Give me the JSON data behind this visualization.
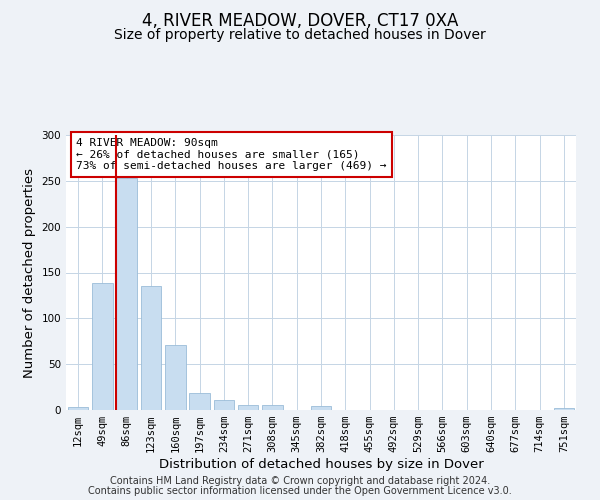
{
  "title": "4, RIVER MEADOW, DOVER, CT17 0XA",
  "subtitle": "Size of property relative to detached houses in Dover",
  "xlabel": "Distribution of detached houses by size in Dover",
  "ylabel": "Number of detached properties",
  "bin_labels": [
    "12sqm",
    "49sqm",
    "86sqm",
    "123sqm",
    "160sqm",
    "197sqm",
    "234sqm",
    "271sqm",
    "308sqm",
    "345sqm",
    "382sqm",
    "418sqm",
    "455sqm",
    "492sqm",
    "529sqm",
    "566sqm",
    "603sqm",
    "640sqm",
    "677sqm",
    "714sqm",
    "751sqm"
  ],
  "bar_values": [
    3,
    139,
    253,
    135,
    71,
    19,
    11,
    5,
    5,
    0,
    4,
    0,
    0,
    0,
    0,
    0,
    0,
    0,
    0,
    0,
    2
  ],
  "bar_color": "#c8ddf0",
  "bar_edge_color": "#9bbdd8",
  "property_line_color": "#cc0000",
  "annotation_title": "4 RIVER MEADOW: 90sqm",
  "annotation_line1": "← 26% of detached houses are smaller (165)",
  "annotation_line2": "73% of semi-detached houses are larger (469) →",
  "annotation_box_color": "#cc0000",
  "ylim": [
    0,
    300
  ],
  "yticks": [
    0,
    50,
    100,
    150,
    200,
    250,
    300
  ],
  "footnote1": "Contains HM Land Registry data © Crown copyright and database right 2024.",
  "footnote2": "Contains public sector information licensed under the Open Government Licence v3.0.",
  "background_color": "#eef2f7",
  "plot_bg_color": "#ffffff",
  "grid_color": "#c5d5e5",
  "title_fontsize": 12,
  "subtitle_fontsize": 10,
  "axis_label_fontsize": 9.5,
  "tick_fontsize": 7.5,
  "annotation_fontsize": 8,
  "footnote_fontsize": 7
}
